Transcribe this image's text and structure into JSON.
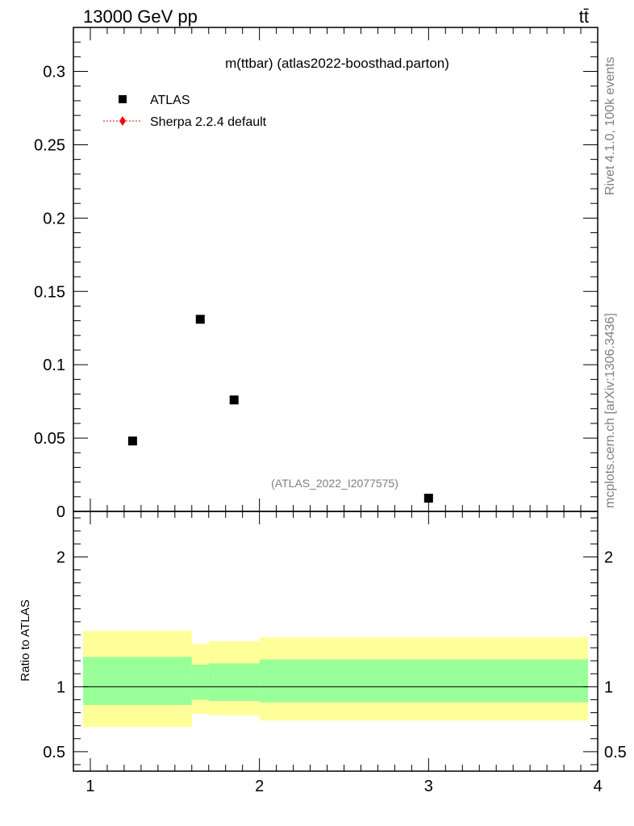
{
  "header": {
    "energy_label": "13000 GeV pp",
    "process_label": "tt̄"
  },
  "side_text": {
    "rivet": "Rivet 4.1.0,  100k events",
    "mcplots": "mcplots.cern.ch [arXiv:1306.3436]"
  },
  "chart_data": [
    {
      "type": "scatter",
      "title": "m(ttbar) (atlas2022-boosthad.parton)",
      "analysis_tag": "(ATLAS_2022_I2077575)",
      "xlim": [
        0.9,
        4.0
      ],
      "ylim": [
        0,
        0.33
      ],
      "yticks": [
        0,
        0.05,
        0.1,
        0.15,
        0.2,
        0.25,
        0.3
      ],
      "ytick_labels": [
        "0",
        "0.05",
        "0.1",
        "0.15",
        "0.2",
        "0.25",
        "0.3"
      ],
      "legend_placement": "top-left",
      "series": [
        {
          "name": "ATLAS",
          "marker": "square",
          "color": "#000000",
          "x": [
            1.25,
            1.65,
            1.85,
            3.0
          ],
          "y": [
            0.048,
            0.131,
            0.076,
            0.009
          ]
        },
        {
          "name": "Sherpa 2.2.4 default",
          "marker": "diamond",
          "line": "dotted",
          "color": "#ff0000",
          "x": [],
          "y": []
        }
      ]
    },
    {
      "type": "area",
      "ylabel": "Ratio to ATLAS",
      "xlim": [
        0.9,
        4.0
      ],
      "ylim": [
        0.35,
        2.35
      ],
      "xticks": [
        1,
        2,
        3,
        4
      ],
      "xtick_labels": [
        "1",
        "2",
        "3",
        "4"
      ],
      "yticks": [
        0.5,
        1,
        2
      ],
      "ytick_labels": [
        "0.5",
        "1",
        "2"
      ],
      "reference_line": 1.0,
      "bands": [
        {
          "color": "#ffff99",
          "bins": [
            {
              "x0": 0.9,
              "x1": 1.6,
              "lo": 0.69,
              "hi": 1.43
            },
            {
              "x0": 1.6,
              "x1": 1.7,
              "lo": 0.79,
              "hi": 1.33
            },
            {
              "x0": 1.7,
              "x1": 2.0,
              "lo": 0.78,
              "hi": 1.35
            },
            {
              "x0": 2.0,
              "x1": 4.0,
              "lo": 0.74,
              "hi": 1.38
            }
          ]
        },
        {
          "color": "#99ff99",
          "bins": [
            {
              "x0": 0.9,
              "x1": 1.6,
              "lo": 0.86,
              "hi": 1.23
            },
            {
              "x0": 1.6,
              "x1": 1.7,
              "lo": 0.9,
              "hi": 1.17
            },
            {
              "x0": 1.7,
              "x1": 2.0,
              "lo": 0.89,
              "hi": 1.18
            },
            {
              "x0": 2.0,
              "x1": 4.0,
              "lo": 0.88,
              "hi": 1.21
            }
          ]
        }
      ]
    }
  ]
}
